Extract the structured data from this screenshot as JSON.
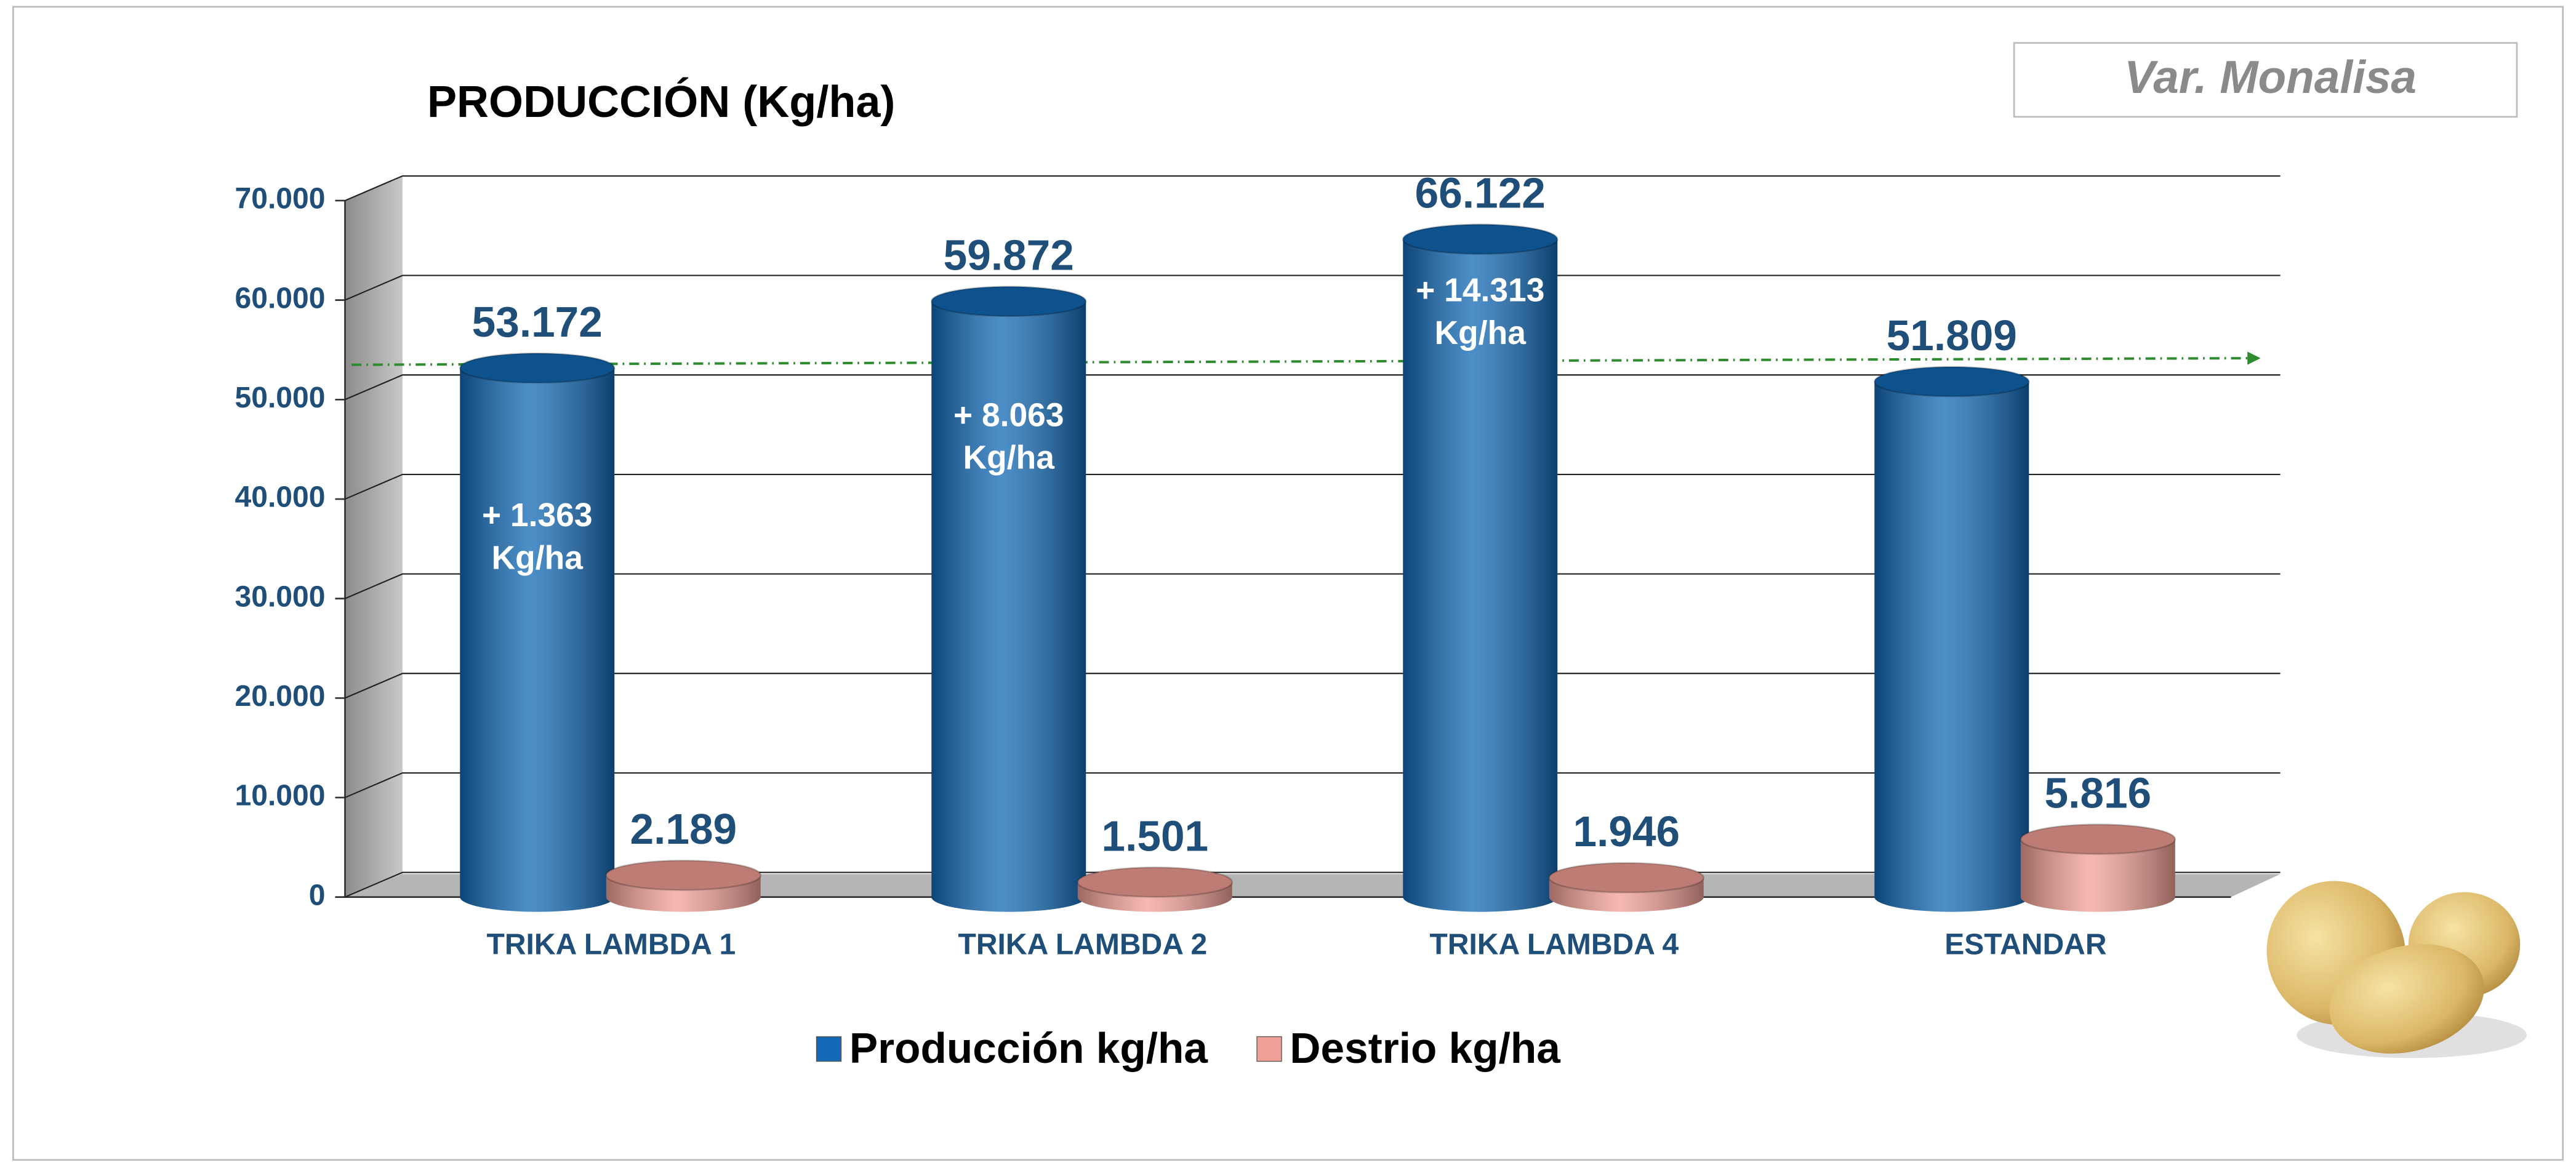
{
  "chart_data": {
    "type": "bar3d",
    "title": "PRODUCCIÓN (Kg/ha)",
    "badge": "Var. Monalisa",
    "categories": [
      "TRIKA LAMBDA 1",
      "TRIKA LAMBDA 2",
      "TRIKA LAMBDA 4",
      "ESTANDAR"
    ],
    "series": [
      {
        "name": "Producción kg/ha",
        "color": "#1269b5",
        "values": [
          53172,
          59872,
          66122,
          51809
        ],
        "value_labels": [
          "53.172",
          "59.872",
          "66.122",
          "51.809"
        ]
      },
      {
        "name": "Destrio kg/ha",
        "color": "#f2a196",
        "values": [
          2189,
          1501,
          1946,
          5816
        ],
        "value_labels": [
          "2.189",
          "1.501",
          "1.946",
          "5.816"
        ]
      }
    ],
    "annotations": [
      [
        "+ 1.363",
        "Kg/ha"
      ],
      [
        "+ 8.063",
        "Kg/ha"
      ],
      [
        "+ 14.313",
        "Kg/ha"
      ],
      null
    ],
    "reference_line": {
      "value": 53500,
      "color": "#2e8b2e"
    },
    "ylim": [
      0,
      70000
    ],
    "yticks": [
      {
        "value": 0,
        "label": "0"
      },
      {
        "value": 10000,
        "label": "10.000"
      },
      {
        "value": 20000,
        "label": "20.000"
      },
      {
        "value": 30000,
        "label": "30.000"
      },
      {
        "value": 40000,
        "label": "40.000"
      },
      {
        "value": 50000,
        "label": "50.000"
      },
      {
        "value": 60000,
        "label": "60.000"
      },
      {
        "value": 70000,
        "label": "70.000"
      }
    ],
    "grid": true,
    "legend": "bottom"
  }
}
